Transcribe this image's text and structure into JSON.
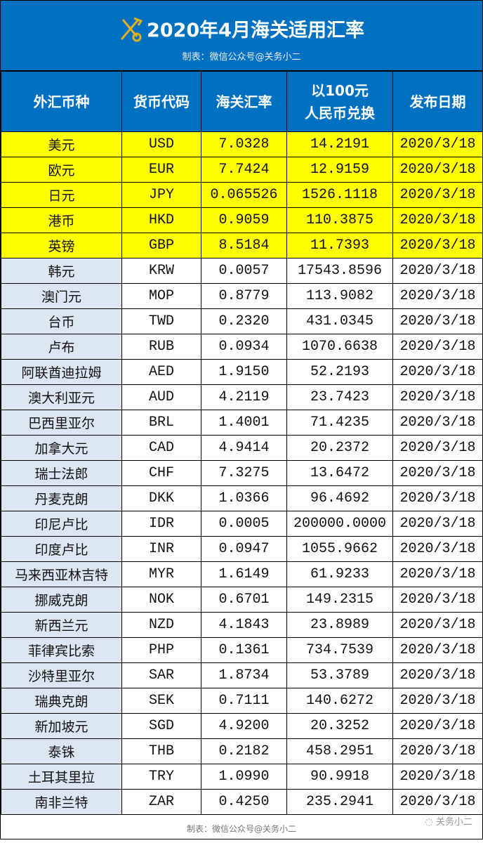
{
  "title": "2020年4月海关适用汇率",
  "subtitle": "制表：微信公众号@关务小二",
  "colors": {
    "header_bg": "#0070c0",
    "highlight": "#ffff00",
    "name_col_bg": "#dce6f2"
  },
  "columns": [
    "外汇币种",
    "货币代码",
    "海关汇率",
    "以100元\n人民币兑换",
    "发布日期"
  ],
  "rows": [
    [
      "美元",
      "USD",
      "7.0328",
      "14.2191",
      "2020/3/18"
    ],
    [
      "欧元",
      "EUR",
      "7.7424",
      "12.9159",
      "2020/3/18"
    ],
    [
      "日元",
      "JPY",
      "0.065526",
      "1526.1118",
      "2020/3/18"
    ],
    [
      "港币",
      "HKD",
      "0.9059",
      "110.3875",
      "2020/3/18"
    ],
    [
      "英镑",
      "GBP",
      "8.5184",
      "11.7393",
      "2020/3/18"
    ],
    [
      "韩元",
      "KRW",
      "0.0057",
      "17543.8596",
      "2020/3/18"
    ],
    [
      "澳门元",
      "MOP",
      "0.8779",
      "113.9082",
      "2020/3/18"
    ],
    [
      "台币",
      "TWD",
      "0.2320",
      "431.0345",
      "2020/3/18"
    ],
    [
      "卢布",
      "RUB",
      "0.0934",
      "1070.6638",
      "2020/3/18"
    ],
    [
      "阿联酋迪拉姆",
      "AED",
      "1.9150",
      "52.2193",
      "2020/3/18"
    ],
    [
      "澳大利亚元",
      "AUD",
      "4.2119",
      "23.7423",
      "2020/3/18"
    ],
    [
      "巴西里亚尔",
      "BRL",
      "1.4001",
      "71.4235",
      "2020/3/18"
    ],
    [
      "加拿大元",
      "CAD",
      "4.9414",
      "20.2372",
      "2020/3/18"
    ],
    [
      "瑞士法郎",
      "CHF",
      "7.3275",
      "13.6472",
      "2020/3/18"
    ],
    [
      "丹麦克朗",
      "DKK",
      "1.0366",
      "96.4692",
      "2020/3/18"
    ],
    [
      "印尼卢比",
      "IDR",
      "0.0005",
      "200000.0000",
      "2020/3/18"
    ],
    [
      "印度卢比",
      "INR",
      "0.0947",
      "1055.9662",
      "2020/3/18"
    ],
    [
      "马来西亚林吉特",
      "MYR",
      "1.6149",
      "61.9233",
      "2020/3/18"
    ],
    [
      "挪威克朗",
      "NOK",
      "0.6701",
      "149.2315",
      "2020/3/18"
    ],
    [
      "新西兰元",
      "NZD",
      "4.1843",
      "23.8989",
      "2020/3/18"
    ],
    [
      "菲律宾比索",
      "PHP",
      "0.1361",
      "734.7539",
      "2020/3/18"
    ],
    [
      "沙特里亚尔",
      "SAR",
      "1.8734",
      "53.3789",
      "2020/3/18"
    ],
    [
      "瑞典克朗",
      "SEK",
      "0.7111",
      "140.6272",
      "2020/3/18"
    ],
    [
      "新加坡元",
      "SGD",
      "4.9200",
      "20.3252",
      "2020/3/18"
    ],
    [
      "泰铢",
      "THB",
      "0.2182",
      "458.2951",
      "2020/3/18"
    ],
    [
      "土耳其里拉",
      "TRY",
      "1.0990",
      "90.9918",
      "2020/3/18"
    ],
    [
      "南非兰特",
      "ZAR",
      "0.4250",
      "235.2941",
      "2020/3/18"
    ]
  ],
  "highlighted_rows": 5,
  "footer": "制表：微信公众号@关务小二",
  "watermark": "关务小二"
}
